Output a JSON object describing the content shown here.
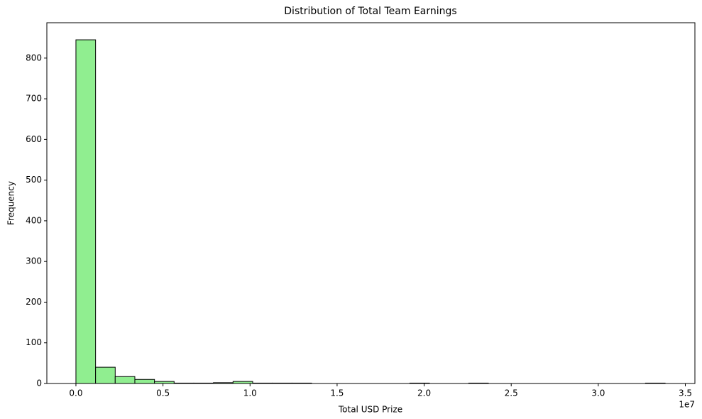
{
  "chart_data": {
    "type": "histogram",
    "title": "Distribution of Total Team Earnings",
    "xlabel": "Total USD Prize",
    "ylabel": "Frequency",
    "x_offset_label": "1e7",
    "bins": [
      0,
      0.1128,
      0.2256,
      0.3384,
      0.4512,
      0.564,
      0.6768,
      0.7896,
      0.9024,
      1.0152,
      1.128,
      1.2408,
      1.3536,
      1.4664,
      1.5792,
      1.692,
      1.8048,
      1.9176,
      2.0304,
      2.1432,
      2.256,
      2.3688,
      2.4816,
      2.5944,
      2.7072,
      2.82,
      2.9328,
      3.0456,
      3.1584,
      3.2712,
      3.384
    ],
    "counts": [
      845,
      40,
      17,
      10,
      5,
      1,
      1,
      2,
      5,
      1,
      1,
      1,
      0,
      0,
      0,
      0,
      0,
      1,
      0,
      0,
      1,
      0,
      0,
      0,
      0,
      0,
      0,
      0,
      0,
      1
    ],
    "color": "#90ee90",
    "edgecolor": "#000000",
    "xlim": [
      -0.167,
      3.555
    ],
    "ylim": [
      0,
      887
    ],
    "xticks": [
      {
        "value": 0,
        "label": "0.0"
      },
      0.5,
      {
        "value": 1,
        "label": "1.0"
      },
      1.5,
      {
        "value": 2,
        "label": "2.0"
      },
      2.5,
      {
        "value": 3,
        "label": "3.0"
      },
      3.5
    ],
    "yticks": [
      0,
      100,
      200,
      300,
      400,
      500,
      600,
      700,
      800
    ],
    "grid": false
  }
}
